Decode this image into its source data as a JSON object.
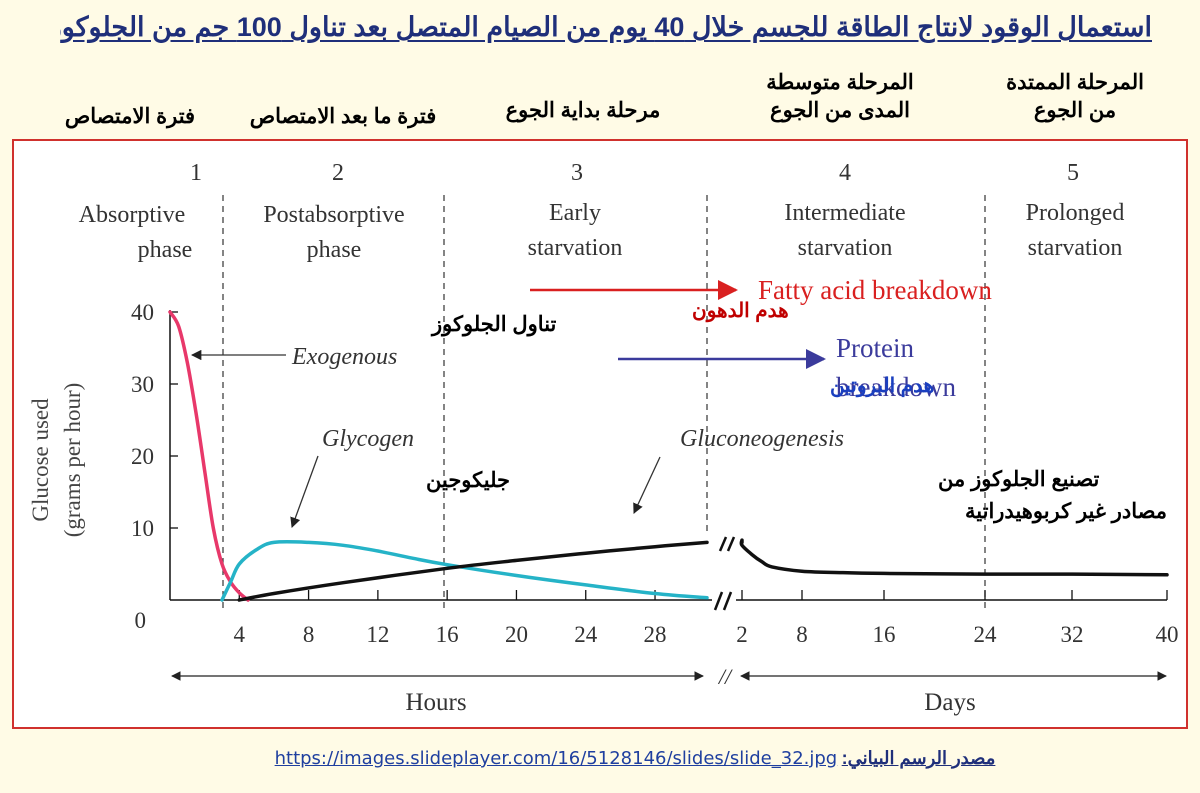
{
  "slide": {
    "title": "استعمال الوقود لانتاج الطاقة للجسم خلال 40 يوم من الصيام المتصل بعد تناول 100 جم من الجلوكوز",
    "arabic_phase_labels": [
      "فترة الامتصاص",
      "فترة ما بعد الامتصاص",
      "مرحلة بداية الجوع",
      "المرحلة متوسطة",
      "المدى من الجوع",
      "المرحلة الممتدة",
      "من الجوع"
    ],
    "source_label": "مصدر الرسم البياني:",
    "source_url": "https://images.slideplayer.com/16/5128146/slides/slide_32.jpg"
  },
  "chart_data": {
    "type": "line",
    "ylabel": [
      "Glucose used",
      "(grams per hour)"
    ],
    "ylim": [
      0,
      40
    ],
    "yticks": [
      "0",
      "10",
      "20",
      "30",
      "40"
    ],
    "x_segments": [
      {
        "unit": "Hours",
        "ticks": [
          "4",
          "8",
          "12",
          "16",
          "20",
          "24",
          "28"
        ],
        "range": [
          0,
          31
        ]
      },
      {
        "unit": "Days",
        "ticks": [
          "2",
          "8",
          "16",
          "24",
          "32",
          "40"
        ],
        "range": [
          0,
          40
        ]
      }
    ],
    "phases": [
      {
        "number": "1",
        "name": [
          "Absorptive",
          "phase"
        ]
      },
      {
        "number": "2",
        "name": [
          "Postabsorptive",
          "phase"
        ]
      },
      {
        "number": "3",
        "name": [
          "Early",
          "starvation"
        ]
      },
      {
        "number": "4",
        "name": [
          "Intermediate",
          "starvation"
        ]
      },
      {
        "number": "5",
        "name": [
          "Prolonged",
          "starvation"
        ]
      }
    ],
    "series": [
      {
        "name": "Exogenous",
        "color": "#e8386a",
        "segment": "Hours",
        "x": [
          0,
          0.5,
          1,
          1.5,
          2,
          2.5,
          3,
          3.5,
          4,
          4.5
        ],
        "y": [
          40,
          38,
          33,
          26,
          18,
          10,
          5,
          2.5,
          1,
          0
        ]
      },
      {
        "name": "Glycogen",
        "color": "#25b3c7",
        "segment": "Hours",
        "x": [
          3,
          3.5,
          4,
          5,
          6,
          8,
          10,
          12,
          14,
          16,
          20,
          24,
          28,
          31
        ],
        "y": [
          0,
          2.5,
          5,
          7,
          8,
          8,
          7.6,
          6.8,
          5.8,
          4.9,
          3.4,
          2.1,
          0.9,
          0.3
        ]
      },
      {
        "name": "Gluconeogenesis",
        "color": "#111111",
        "segment": "Hours",
        "x": [
          4,
          6,
          10,
          16,
          20,
          24,
          28,
          31
        ],
        "y": [
          0,
          0.9,
          2.4,
          4.4,
          5.5,
          6.5,
          7.4,
          8
        ]
      },
      {
        "name": "Gluconeogenesis",
        "color": "#111111",
        "segment": "Days",
        "x": [
          0,
          1,
          2,
          3,
          4,
          5,
          8,
          12,
          16,
          24,
          32,
          40
        ],
        "y": [
          8,
          8.3,
          7.6,
          6.3,
          5.3,
          4.6,
          4,
          3.8,
          3.7,
          3.6,
          3.6,
          3.5
        ]
      }
    ],
    "annotations": {
      "exogenous": {
        "en": "Exogenous",
        "ar": "تناول الجلوكوز"
      },
      "glycogen": {
        "en": "Glycogen",
        "ar": "جليكوجين"
      },
      "gluconeogenesis": {
        "en": "Gluconeogenesis",
        "ar": [
          "تصنيع الجلوكوز من",
          "مصادر غير كربوهيدراتية"
        ]
      },
      "fatty_acid": {
        "en": "Fatty acid breakdown",
        "ar": "هدم الدهون",
        "color": "#d92020"
      },
      "protein": {
        "en": [
          "Protein",
          "breakdown"
        ],
        "ar": "هدم البروتين",
        "color": "#3b3b9c",
        "ar_color": "#1a3fbf"
      }
    },
    "break_symbol": "//"
  }
}
